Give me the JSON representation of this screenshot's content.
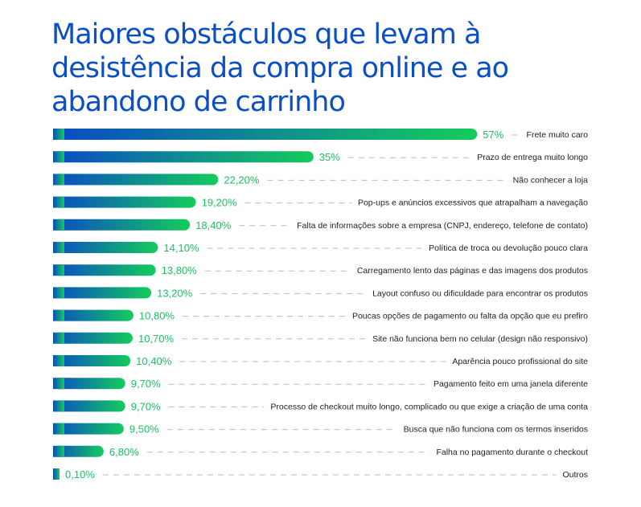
{
  "chart_data": {
    "type": "bar",
    "orientation": "horizontal",
    "title": "Maiores obstáculos que levam à desistência da compra online e ao abandono de carrinho",
    "categories": [
      "Frete muito caro",
      "Prazo de entrega muito longo",
      "Não conhecer a loja",
      "Pop-ups e anúncios excessivos que atrapalham a navegação",
      "Falta de informações sobre a empresa (CNPJ, endereço, telefone de contato)",
      "Política de troca ou devolução pouco clara",
      "Carregamento lento das páginas e das imagens dos produtos",
      "Layout confuso ou dificuldade para encontrar os produtos",
      "Poucas opções de pagamento ou falta da opção que eu prefiro",
      "Site não funciona bem no celular (design não responsivo)",
      "Aparência pouco profissional do site",
      "Pagamento feito em uma janela diferente",
      "Processo de checkout muito longo, complicado ou que exige a criação de uma conta",
      "Busca que não funciona com os termos inseridos",
      "Falha no pagamento durante o checkout",
      "Outros"
    ],
    "values": [
      57,
      35,
      22.2,
      19.2,
      18.4,
      14.1,
      13.8,
      13.2,
      10.8,
      10.7,
      10.4,
      9.7,
      9.7,
      9.5,
      6.8,
      0.1
    ],
    "value_labels": [
      "57%",
      "35%",
      "22,20%",
      "19,20%",
      "18,40%",
      "14,10%",
      "13,80%",
      "13,20%",
      "10,80%",
      "10,70%",
      "10,40%",
      "9,70%",
      "9,70%",
      "9,50%",
      "6,80%",
      "0,10%"
    ],
    "unit": "%",
    "colors": {
      "gradient_start": "#0a4bc4",
      "gradient_end": "#14cc5c",
      "value_text": "#1cc163",
      "title": "#0c4ec4"
    },
    "grid": false,
    "legend": "none"
  }
}
